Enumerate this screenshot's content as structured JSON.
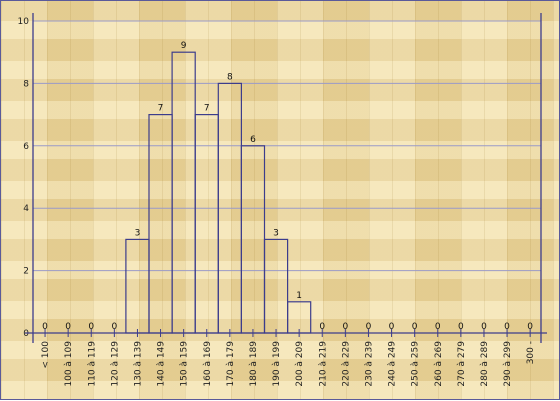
{
  "chart_data": {
    "type": "bar",
    "title": "",
    "xlabel": "",
    "ylabel": "",
    "ylim": [
      0,
      10
    ],
    "yticks": [
      0,
      2,
      4,
      6,
      8,
      10
    ],
    "grid": true,
    "categories": [
      "< 100",
      "100 à 109",
      "110 à 119",
      "120 à 129",
      "130 à 139",
      "140 à 149",
      "150 à 159",
      "160 à 169",
      "170 à 179",
      "180 à 189",
      "190 à 199",
      "200 à 209",
      "210 à 219",
      "220 à 229",
      "230 à 239",
      "240 à 249",
      "250 à 259",
      "260 à 269",
      "270 à 279",
      "280 à 289",
      "290 à 299",
      "300 -"
    ],
    "values": [
      0,
      0,
      0,
      0,
      3,
      7,
      9,
      7,
      8,
      6,
      3,
      1,
      0,
      0,
      0,
      0,
      0,
      0,
      0,
      0,
      0,
      0
    ],
    "colors": {
      "bar_stroke": "#3c3c8c",
      "grid": "#9a9ac8",
      "axis": "#3c3c8c",
      "background": "#ecd9a2"
    }
  }
}
